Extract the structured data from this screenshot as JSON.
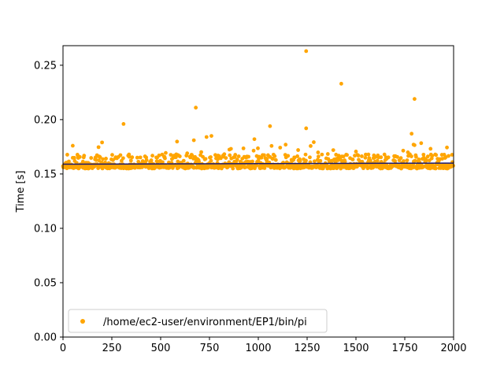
{
  "chart_data": {
    "type": "scatter",
    "title": "",
    "xlabel": "",
    "ylabel": "Time [s]",
    "xlim": [
      0,
      2000
    ],
    "ylim": [
      0,
      0.268
    ],
    "xticks": [
      0,
      250,
      500,
      750,
      1000,
      1250,
      1500,
      1750,
      2000
    ],
    "yticks": [
      0.0,
      0.05,
      0.1,
      0.15,
      0.2,
      0.25
    ],
    "xtick_labels": [
      "0",
      "250",
      "500",
      "750",
      "1000",
      "1250",
      "1500",
      "1750",
      "2000"
    ],
    "ytick_labels": [
      "0.00",
      "0.05",
      "0.10",
      "0.15",
      "0.20",
      "0.25"
    ],
    "grid": false,
    "legend_position": "lower-left",
    "series": [
      {
        "name": "/home/ec2-user/environment/EP1/bin/pi",
        "color": "#ffa500",
        "marker": "circle",
        "n_points": 2000,
        "baseline_min": 0.155,
        "baseline_max": 0.168,
        "outliers": [
          {
            "x": 50,
            "y": 0.176
          },
          {
            "x": 200,
            "y": 0.179
          },
          {
            "x": 310,
            "y": 0.196
          },
          {
            "x": 670,
            "y": 0.181
          },
          {
            "x": 680,
            "y": 0.211
          },
          {
            "x": 735,
            "y": 0.184
          },
          {
            "x": 760,
            "y": 0.185
          },
          {
            "x": 980,
            "y": 0.182
          },
          {
            "x": 1060,
            "y": 0.194
          },
          {
            "x": 1245,
            "y": 0.263
          },
          {
            "x": 1245,
            "y": 0.192
          },
          {
            "x": 1425,
            "y": 0.233
          },
          {
            "x": 1785,
            "y": 0.187
          },
          {
            "x": 1795,
            "y": 0.177
          },
          {
            "x": 1800,
            "y": 0.219
          }
        ]
      },
      {
        "type": "line",
        "color": "#191970",
        "values": [
          [
            0,
            0.159
          ],
          [
            2000,
            0.16
          ]
        ]
      }
    ]
  }
}
